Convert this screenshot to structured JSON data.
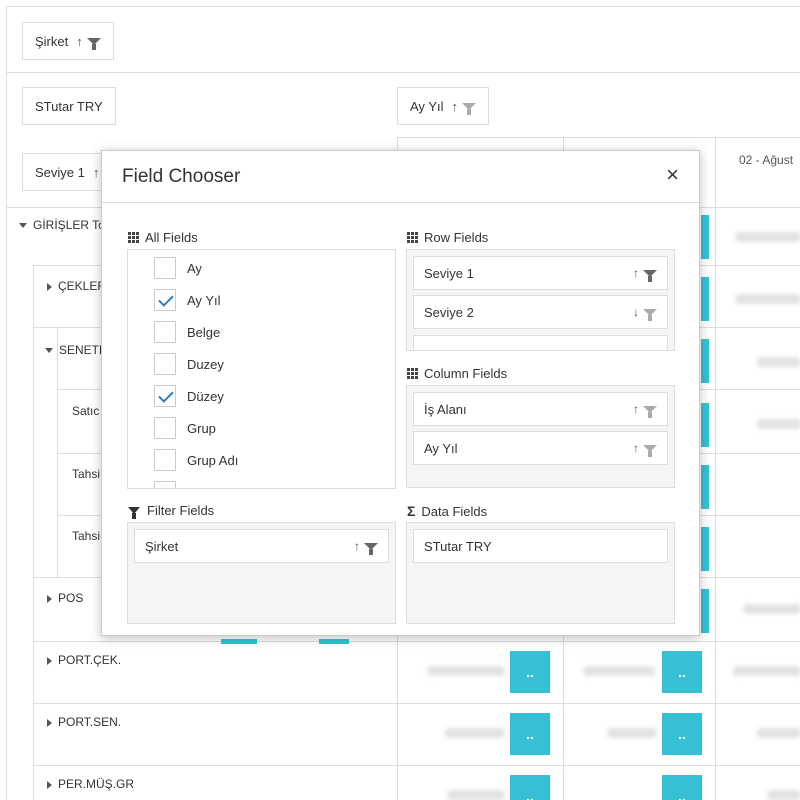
{
  "pivot": {
    "filter_area": {
      "field": "Şirket",
      "sort": "↑"
    },
    "data_area": {
      "field": "STutar TRY"
    },
    "column_area": {
      "field": "Ay Yıl",
      "sort": "↑"
    },
    "row_area": {
      "field": "Seviye 1",
      "sort": "↑"
    },
    "column_header": "02 - Ağust",
    "rows": [
      {
        "label": "GİRİŞLER To",
        "expanded": true
      },
      {
        "label": "ÇEKLER",
        "expanded": false
      },
      {
        "label": "SENETL",
        "expanded": true
      },
      {
        "label": "Satıc"
      },
      {
        "label": "Tahsi"
      },
      {
        "label": "Tahsi"
      },
      {
        "label": "POS",
        "expanded": false
      },
      {
        "label": "PORT.ÇEK.",
        "expanded": false
      },
      {
        "label": "PORT.SEN.",
        "expanded": false
      },
      {
        "label": "PER.MÜŞ.GR",
        "expanded": false
      }
    ],
    "cell_button_label": ".."
  },
  "field_chooser": {
    "title": "Field Chooser",
    "close_label": "×",
    "all_fields": {
      "title": "All Fields",
      "items": [
        {
          "label": "Ay",
          "checked": false
        },
        {
          "label": "Ay Yıl",
          "checked": true
        },
        {
          "label": "Belge",
          "checked": false
        },
        {
          "label": "Duzey",
          "checked": false
        },
        {
          "label": "Düzey",
          "checked": true
        },
        {
          "label": "Grup",
          "checked": false
        },
        {
          "label": "Grup Adı",
          "checked": false
        }
      ]
    },
    "row_fields": {
      "title": "Row Fields",
      "items": [
        {
          "label": "Seviye 1",
          "sort": "↑"
        },
        {
          "label": "Seviye 2",
          "sort": "↓"
        }
      ]
    },
    "column_fields": {
      "title": "Column Fields",
      "items": [
        {
          "label": "İş Alanı",
          "sort": "↑"
        },
        {
          "label": "Ay Yıl",
          "sort": "↑"
        }
      ]
    },
    "filter_fields": {
      "title": "Filter Fields",
      "items": [
        {
          "label": "Şirket",
          "sort": "↑"
        }
      ]
    },
    "data_fields": {
      "title": "Data Fields",
      "items": [
        {
          "label": "STutar TRY"
        }
      ]
    }
  },
  "colors": {
    "accent": "#35c1d3",
    "check": "#337ab7",
    "border": "#dddddd",
    "area_bg": "#f5f5f5"
  }
}
